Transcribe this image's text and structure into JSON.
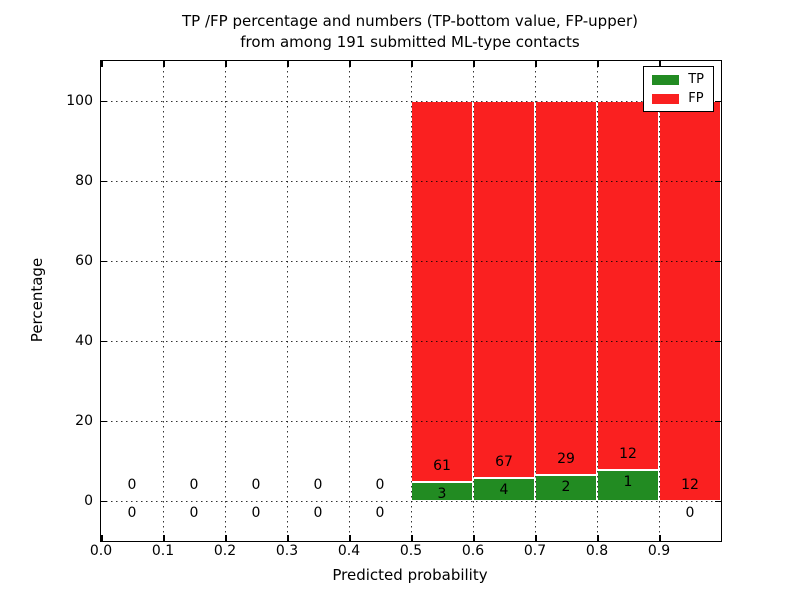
{
  "title": {
    "line1": "TP /FP percentage and numbers (TP-bottom value, FP-upper)",
    "line2": "from among 191 submitted ML-type contacts"
  },
  "axes": {
    "xlabel": "Predicted probability",
    "ylabel": "Percentage"
  },
  "legend": {
    "items": [
      {
        "label": "TP",
        "color": "#228b22"
      },
      {
        "label": "FP",
        "color": "#fa2020"
      }
    ]
  },
  "chart_data": {
    "type": "bar",
    "stacked": true,
    "title": "TP /FP percentage and numbers (TP-bottom value, FP-upper) from among 191 submitted ML-type contacts",
    "xlabel": "Predicted probability",
    "ylabel": "Percentage",
    "xlim": [
      0.0,
      1.0
    ],
    "ylim": [
      -10,
      110
    ],
    "grid": true,
    "grid_style": "dotted",
    "legend_position": "upper right",
    "bin_width": 0.1,
    "total_contacts": 191,
    "x_ticks": [
      0.0,
      0.1,
      0.2,
      0.3,
      0.4,
      0.5,
      0.6,
      0.7,
      0.8,
      0.9
    ],
    "x_tick_labels": [
      "0.0",
      "0.1",
      "0.2",
      "0.3",
      "0.4",
      "0.5",
      "0.6",
      "0.7",
      "0.8",
      "0.9"
    ],
    "y_ticks": [
      0,
      20,
      40,
      60,
      80,
      100
    ],
    "y_tick_labels": [
      "0",
      "20",
      "40",
      "60",
      "80",
      "100"
    ],
    "series": [
      {
        "name": "TP",
        "color": "#228b22"
      },
      {
        "name": "FP",
        "color": "#fa2020"
      }
    ],
    "bins": [
      {
        "start": 0.0,
        "tp_count": 0,
        "fp_count": 0,
        "tp_pct": 0,
        "fp_pct": 0
      },
      {
        "start": 0.1,
        "tp_count": 0,
        "fp_count": 0,
        "tp_pct": 0,
        "fp_pct": 0
      },
      {
        "start": 0.2,
        "tp_count": 0,
        "fp_count": 0,
        "tp_pct": 0,
        "fp_pct": 0
      },
      {
        "start": 0.3,
        "tp_count": 0,
        "fp_count": 0,
        "tp_pct": 0,
        "fp_pct": 0
      },
      {
        "start": 0.4,
        "tp_count": 0,
        "fp_count": 0,
        "tp_pct": 0,
        "fp_pct": 0
      },
      {
        "start": 0.5,
        "tp_count": 3,
        "fp_count": 61,
        "tp_pct": 4.69,
        "fp_pct": 95.31
      },
      {
        "start": 0.6,
        "tp_count": 4,
        "fp_count": 67,
        "tp_pct": 5.63,
        "fp_pct": 94.37
      },
      {
        "start": 0.7,
        "tp_count": 2,
        "fp_count": 29,
        "tp_pct": 6.45,
        "fp_pct": 93.55
      },
      {
        "start": 0.8,
        "tp_count": 1,
        "fp_count": 12,
        "tp_pct": 7.69,
        "fp_pct": 92.31
      },
      {
        "start": 0.9,
        "tp_count": 0,
        "fp_count": 12,
        "tp_pct": 0,
        "fp_pct": 100
      }
    ]
  }
}
